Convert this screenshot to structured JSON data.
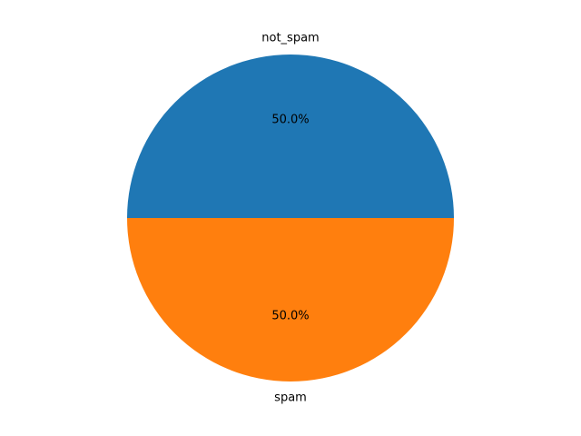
{
  "chart_data": {
    "type": "pie",
    "title": "",
    "start_angle_deg": 0,
    "direction": "counterclockwise",
    "slices": [
      {
        "label": "not_spam",
        "value": 50.0,
        "pct_label": "50.0%",
        "color": "#1f77b4"
      },
      {
        "label": "spam",
        "value": 50.0,
        "pct_label": "50.0%",
        "color": "#ff7f0e"
      }
    ]
  }
}
